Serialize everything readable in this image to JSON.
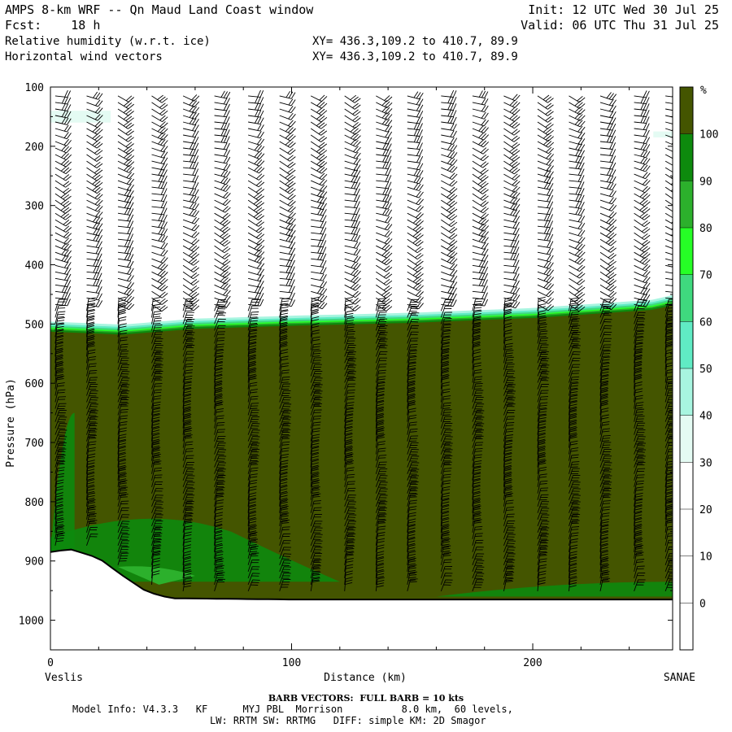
{
  "header": {
    "title": "AMPS 8-km WRF -- Qn Maud Land Coast window",
    "fcst": "Fcst:    18 h",
    "field1": "Relative humidity (w.r.t. ice)",
    "field2": "Horizontal wind vectors",
    "xy1": "XY= 436.3,109.2 to 410.7, 89.9",
    "xy2": "XY= 436.3,109.2 to 410.7, 89.9",
    "init": "Init: 12 UTC Wed 30 Jul 25",
    "valid": "Valid: 06 UTC Thu 31 Jul 25"
  },
  "footer": {
    "barb": "BARB VECTORS:  FULL BARB = 10 kts",
    "model1": "Model Info: V4.3.3   KF      MYJ PBL  Morrison          8.0 km,  60 levels,",
    "model2": "LW: RRTM SW: RRTMG   DIFF: simple KM: 2D Smagor"
  },
  "chart_data": {
    "type": "heatmap",
    "title": "Relative humidity (w.r.t. ice) cross-section with horizontal wind barbs",
    "xlabel": "Distance (km)",
    "ylabel": "Pressure (hPa)",
    "x_range": [
      0,
      258
    ],
    "y_range": [
      1050,
      100
    ],
    "x_ticks": [
      0,
      100,
      200
    ],
    "y_ticks": [
      100,
      200,
      300,
      400,
      500,
      600,
      700,
      800,
      900,
      1000
    ],
    "x_endpoints": {
      "left": "Veslis",
      "right": "SANAE"
    },
    "colorbar": {
      "unit": "%",
      "levels": [
        0,
        10,
        20,
        30,
        40,
        50,
        60,
        70,
        80,
        90,
        100
      ],
      "colors": [
        "#ffffff",
        "#ffffff",
        "#ffffff",
        "#ffffff",
        "#e4fbf3",
        "#a8f5e0",
        "#60ebc4",
        "#3fd97e",
        "#26ff26",
        "#2cb02c",
        "#0d8a0d",
        "#445500"
      ]
    },
    "moist_layer_top_hPa": {
      "x": [
        0,
        30,
        60,
        100,
        150,
        200,
        250,
        258
      ],
      "p": [
        510,
        515,
        505,
        500,
        495,
        487,
        473,
        465
      ]
    },
    "terrain_surface_hPa": {
      "x": [
        0,
        8,
        20,
        30,
        40,
        50,
        100,
        150,
        200,
        258
      ],
      "p": [
        885,
        880,
        895,
        925,
        952,
        963,
        965,
        965,
        965,
        965
      ]
    },
    "high_moist_patches": [
      {
        "x": [
          0,
          25
        ],
        "p": [
          140,
          160
        ],
        "level": "30-40"
      },
      {
        "x": [
          250,
          258
        ],
        "p": [
          175,
          185
        ],
        "level": "30-40"
      }
    ],
    "lower_moist_regions": [
      {
        "desc": "80-90 band near surface",
        "x": [
          0,
          120
        ],
        "p_top": 830,
        "p_bottom": 935
      },
      {
        "desc": "80-90 near surface right side",
        "x": [
          160,
          258
        ],
        "p_top": 935,
        "p_bottom": 960
      },
      {
        "desc": "80-90 left edge",
        "x": [
          0,
          10
        ],
        "p_top": 650,
        "p_bottom": 885
      }
    ],
    "wind_barbs": {
      "x_columns_km": [
        2,
        15,
        28,
        42,
        55,
        68,
        82,
        95,
        108,
        122,
        135,
        148,
        162,
        175,
        188,
        202,
        215,
        228,
        242,
        255
      ],
      "note": "barbs from ~100 hPa to surface; full barb = 10 kts"
    }
  }
}
